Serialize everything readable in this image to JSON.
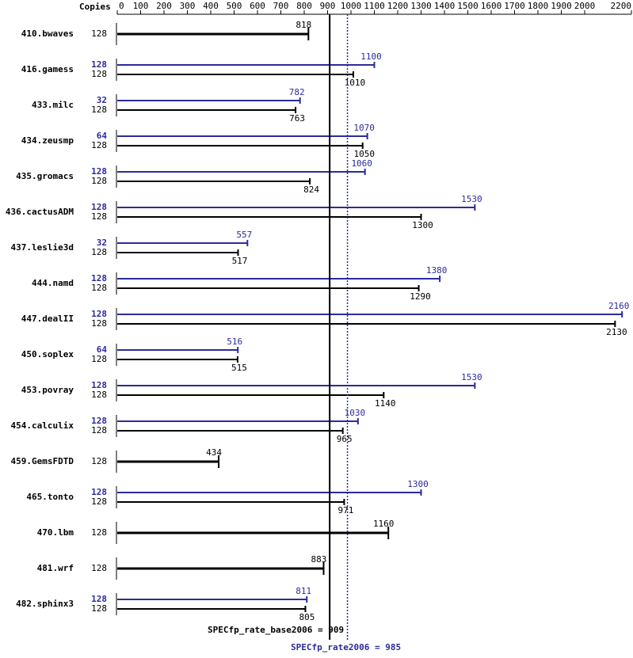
{
  "chart_data": {
    "type": "bar",
    "orientation": "horizontal",
    "copies_label": "Copies",
    "categories": [
      "410.bwaves",
      "416.gamess",
      "433.milc",
      "434.zeusmp",
      "435.gromacs",
      "436.cactusADM",
      "437.leslie3d",
      "444.namd",
      "447.dealII",
      "450.soplex",
      "453.povray",
      "454.calculix",
      "459.GemsFDTD",
      "465.tonto",
      "470.lbm",
      "481.wrf",
      "482.sphinx3"
    ],
    "series": [
      {
        "color": "#000000",
        "copies": [
          128,
          128,
          128,
          128,
          128,
          128,
          128,
          128,
          128,
          128,
          128,
          128,
          128,
          128,
          128,
          128,
          128
        ],
        "values": [
          818,
          1010,
          763,
          1050,
          824,
          1300,
          517,
          1290,
          2130,
          515,
          1140,
          965,
          434,
          971,
          1160,
          883,
          805
        ]
      },
      {
        "color": "#2b2b9c",
        "copies": [
          null,
          128,
          32,
          64,
          128,
          128,
          32,
          128,
          128,
          64,
          128,
          128,
          null,
          128,
          null,
          null,
          128
        ],
        "values": [
          null,
          1100,
          782,
          1070,
          1060,
          1530,
          557,
          1380,
          2160,
          516,
          1530,
          1030,
          null,
          1300,
          null,
          null,
          811
        ]
      }
    ],
    "xlim": [
      0,
      2200
    ],
    "xticks": [
      0,
      100,
      200,
      300,
      400,
      500,
      600,
      700,
      800,
      900,
      1000,
      1100,
      1200,
      1300,
      1400,
      1500,
      1600,
      1700,
      1800,
      1900,
      2000,
      2200
    ],
    "base_label": "SPECfp_rate_base2006 = 909",
    "base_value": 909,
    "peak_label": "SPECfp_rate2006 = 985",
    "peak_value": 985
  }
}
